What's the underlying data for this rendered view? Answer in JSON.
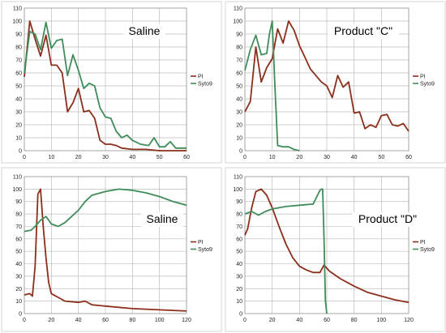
{
  "chart_data": [
    {
      "type": "line",
      "title": "Saline",
      "xlim": [
        0,
        60
      ],
      "ylim": [
        0,
        110
      ],
      "xticks": [
        0,
        10,
        20,
        30,
        40,
        50,
        60
      ],
      "yticks": [
        0,
        10,
        20,
        30,
        40,
        50,
        60,
        70,
        80,
        90,
        100,
        110
      ],
      "grid": true,
      "legend": "right",
      "series": [
        {
          "name": "PI",
          "color": "#8b2e1a",
          "x": [
            0,
            2,
            4,
            6,
            8,
            10,
            12,
            14,
            16,
            18,
            20,
            22,
            24,
            26,
            28,
            30,
            32,
            34,
            36,
            40,
            45,
            50,
            55,
            60
          ],
          "y": [
            57,
            100,
            86,
            73,
            89,
            66,
            66,
            60,
            30,
            37,
            48,
            30,
            31,
            25,
            8,
            5,
            5,
            4,
            2,
            1,
            1,
            0,
            0,
            0
          ]
        },
        {
          "name": "Syto9",
          "color": "#3f8c5a",
          "x": [
            0,
            2,
            4,
            6,
            8,
            10,
            12,
            14,
            16,
            18,
            20,
            22,
            24,
            26,
            28,
            30,
            32,
            34,
            36,
            38,
            40,
            43,
            46,
            48,
            50,
            52,
            54,
            56,
            60
          ],
          "y": [
            60,
            92,
            90,
            78,
            99,
            79,
            85,
            86,
            58,
            74,
            62,
            48,
            52,
            50,
            33,
            26,
            25,
            15,
            10,
            12,
            8,
            5,
            4,
            10,
            3,
            3,
            7,
            2,
            2
          ]
        }
      ]
    },
    {
      "type": "line",
      "title": "Product \"C\"",
      "xlim": [
        0,
        60
      ],
      "ylim": [
        0,
        110
      ],
      "xticks": [
        0,
        10,
        20,
        30,
        40,
        50,
        60
      ],
      "yticks": [
        0,
        10,
        20,
        30,
        40,
        50,
        60,
        70,
        80,
        90,
        100,
        110
      ],
      "grid": true,
      "legend": "right",
      "series": [
        {
          "name": "PI",
          "color": "#8b2e1a",
          "x": [
            0,
            2,
            4,
            6,
            8,
            10,
            12,
            14,
            16,
            18,
            20,
            22,
            24,
            26,
            28,
            30,
            32,
            34,
            36,
            38,
            40,
            42,
            44,
            46,
            48,
            50,
            52,
            54,
            56,
            58,
            60
          ],
          "y": [
            30,
            38,
            80,
            53,
            64,
            71,
            94,
            83,
            100,
            93,
            81,
            72,
            63,
            58,
            53,
            50,
            41,
            58,
            49,
            53,
            29,
            30,
            17,
            20,
            18,
            27,
            28,
            20,
            19,
            21,
            15
          ]
        },
        {
          "name": "Syto9",
          "color": "#3f8c5a",
          "x": [
            0,
            2,
            4,
            6,
            8,
            9,
            10,
            11,
            12,
            14,
            16,
            18,
            20
          ],
          "y": [
            62,
            78,
            89,
            74,
            75,
            90,
            100,
            50,
            4,
            3,
            3,
            1,
            0
          ]
        }
      ]
    },
    {
      "type": "line",
      "title": "Saline",
      "xlim": [
        0,
        120
      ],
      "ylim": [
        0,
        110
      ],
      "xticks": [
        0,
        20,
        40,
        60,
        80,
        100,
        120
      ],
      "yticks": [
        0,
        10,
        20,
        30,
        40,
        50,
        60,
        70,
        80,
        90,
        100,
        110
      ],
      "grid": true,
      "legend": "right",
      "series": [
        {
          "name": "PI",
          "color": "#8b2e1a",
          "x": [
            0,
            4,
            6,
            8,
            10,
            12,
            14,
            16,
            18,
            20,
            25,
            30,
            40,
            45,
            50,
            60,
            80,
            100,
            120
          ],
          "y": [
            15,
            16,
            14,
            38,
            96,
            100,
            70,
            45,
            25,
            16,
            13,
            10,
            9,
            10,
            7,
            6,
            4,
            3,
            2
          ]
        },
        {
          "name": "Syto9",
          "color": "#3f8c5a",
          "x": [
            0,
            5,
            8,
            12,
            16,
            20,
            25,
            30,
            35,
            40,
            45,
            50,
            60,
            70,
            80,
            90,
            100,
            110,
            120
          ],
          "y": [
            66,
            67,
            70,
            75,
            78,
            72,
            70,
            73,
            78,
            83,
            90,
            95,
            98,
            100,
            99,
            97,
            94,
            90,
            87
          ]
        }
      ]
    },
    {
      "type": "line",
      "title": "Product \"D\"",
      "xlim": [
        0,
        120
      ],
      "ylim": [
        0,
        110
      ],
      "xticks": [
        0,
        20,
        40,
        60,
        80,
        100,
        120
      ],
      "yticks": [
        0,
        10,
        20,
        30,
        40,
        50,
        60,
        70,
        80,
        90,
        100,
        110
      ],
      "grid": true,
      "legend": "right",
      "series": [
        {
          "name": "PI",
          "color": "#8b2e1a",
          "x": [
            0,
            2,
            5,
            8,
            12,
            16,
            20,
            25,
            30,
            35,
            40,
            45,
            50,
            55,
            58,
            62,
            70,
            80,
            90,
            100,
            110,
            120
          ],
          "y": [
            63,
            68,
            85,
            98,
            100,
            95,
            85,
            70,
            56,
            45,
            38,
            35,
            33,
            33,
            39,
            34,
            28,
            22,
            17,
            14,
            11,
            9
          ]
        },
        {
          "name": "Syto9",
          "color": "#3f8c5a",
          "x": [
            0,
            5,
            10,
            15,
            20,
            30,
            40,
            50,
            55,
            56,
            57,
            58,
            59,
            60
          ],
          "y": [
            80,
            82,
            79,
            82,
            84,
            86,
            87,
            88,
            99,
            100,
            100,
            60,
            10,
            0
          ]
        }
      ]
    }
  ]
}
